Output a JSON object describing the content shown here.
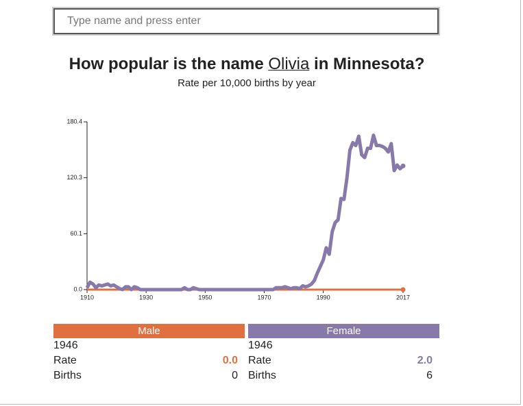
{
  "search": {
    "placeholder": "Type name and press enter"
  },
  "chart_data": {
    "type": "line",
    "title": {
      "prefix": "How popular is the name",
      "name": "Olivia",
      "suffix": "in Minnesota?"
    },
    "subtitle": "Rate per 10,000 births by year",
    "x": [
      1910,
      1911,
      1912,
      1913,
      1914,
      1915,
      1916,
      1917,
      1918,
      1919,
      1920,
      1921,
      1922,
      1923,
      1924,
      1925,
      1926,
      1927,
      1928,
      1929,
      1930,
      1931,
      1932,
      1933,
      1934,
      1935,
      1936,
      1937,
      1938,
      1939,
      1940,
      1941,
      1942,
      1943,
      1944,
      1945,
      1946,
      1947,
      1948,
      1949,
      1950,
      1951,
      1952,
      1953,
      1954,
      1955,
      1956,
      1957,
      1958,
      1959,
      1960,
      1961,
      1962,
      1963,
      1964,
      1965,
      1966,
      1967,
      1968,
      1969,
      1970,
      1971,
      1972,
      1973,
      1974,
      1975,
      1976,
      1977,
      1978,
      1979,
      1980,
      1981,
      1982,
      1983,
      1984,
      1985,
      1986,
      1987,
      1988,
      1989,
      1990,
      1991,
      1992,
      1993,
      1994,
      1995,
      1996,
      1997,
      1998,
      1999,
      2000,
      2001,
      2002,
      2003,
      2004,
      2005,
      2006,
      2007,
      2008,
      2009,
      2010,
      2011,
      2012,
      2013,
      2014,
      2015,
      2016,
      2017
    ],
    "series": [
      {
        "name": "Male",
        "color": "#e07040",
        "values": [
          0,
          0,
          0,
          0,
          0,
          0,
          0,
          0,
          0,
          0,
          0,
          0,
          0,
          0,
          0,
          0,
          0,
          0,
          0,
          0,
          0,
          0,
          0,
          0,
          0,
          0,
          0,
          0,
          0,
          0,
          0,
          0,
          0,
          0,
          0,
          0,
          0,
          0,
          0,
          0,
          0,
          0,
          0,
          0,
          0,
          0,
          0,
          0,
          0,
          0,
          0,
          0,
          0,
          0,
          0,
          0,
          0,
          0,
          0,
          0,
          0,
          0,
          0,
          0,
          0,
          0,
          0,
          0,
          0,
          0,
          0,
          0,
          0,
          0,
          0,
          0,
          0,
          0,
          0,
          0,
          0,
          0,
          0,
          0,
          0,
          0,
          0,
          0,
          0,
          0,
          0,
          0,
          0,
          0,
          0,
          0,
          0,
          0,
          0,
          0,
          0,
          0,
          0,
          0,
          0,
          0,
          0,
          0
        ]
      },
      {
        "name": "Female",
        "color": "#8779a9",
        "values": [
          2,
          8,
          6,
          2,
          5,
          4,
          5,
          6,
          4,
          5,
          3,
          1,
          0,
          3,
          3,
          0,
          3,
          2,
          0,
          0,
          0,
          0,
          0,
          0,
          0,
          0,
          0,
          0,
          0,
          0,
          0,
          0,
          0,
          2,
          0,
          0,
          2,
          1,
          0,
          0,
          0,
          0,
          0,
          0,
          0,
          0,
          0,
          0,
          0,
          0,
          0,
          0,
          0,
          0,
          0,
          0,
          0,
          0,
          0,
          0,
          0,
          0,
          0,
          0,
          2,
          2,
          2,
          3,
          2,
          1,
          2,
          2,
          1,
          4,
          3,
          4,
          6,
          10,
          18,
          25,
          32,
          45,
          38,
          62,
          72,
          75,
          98,
          97,
          120,
          150,
          158,
          155,
          165,
          145,
          142,
          152,
          152,
          166,
          155,
          155,
          154,
          152,
          148,
          157,
          128,
          134,
          130,
          133
        ]
      }
    ],
    "xlim": [
      1910,
      2017
    ],
    "xticks": [
      1910,
      1930,
      1950,
      1970,
      1990,
      2017
    ],
    "ylim": [
      0,
      180.4
    ],
    "yticks": [
      {
        "value": 0,
        "label": "0.0"
      },
      60.1,
      120.3,
      180.4
    ]
  },
  "details": [
    {
      "header": "Male",
      "year": "1946",
      "rate_label": "Rate",
      "rate": "0.0",
      "births_label": "Births",
      "births": "0"
    },
    {
      "header": "Female",
      "year": "1946",
      "rate_label": "Rate",
      "rate": "2.0",
      "births_label": "Births",
      "births": "6"
    }
  ]
}
